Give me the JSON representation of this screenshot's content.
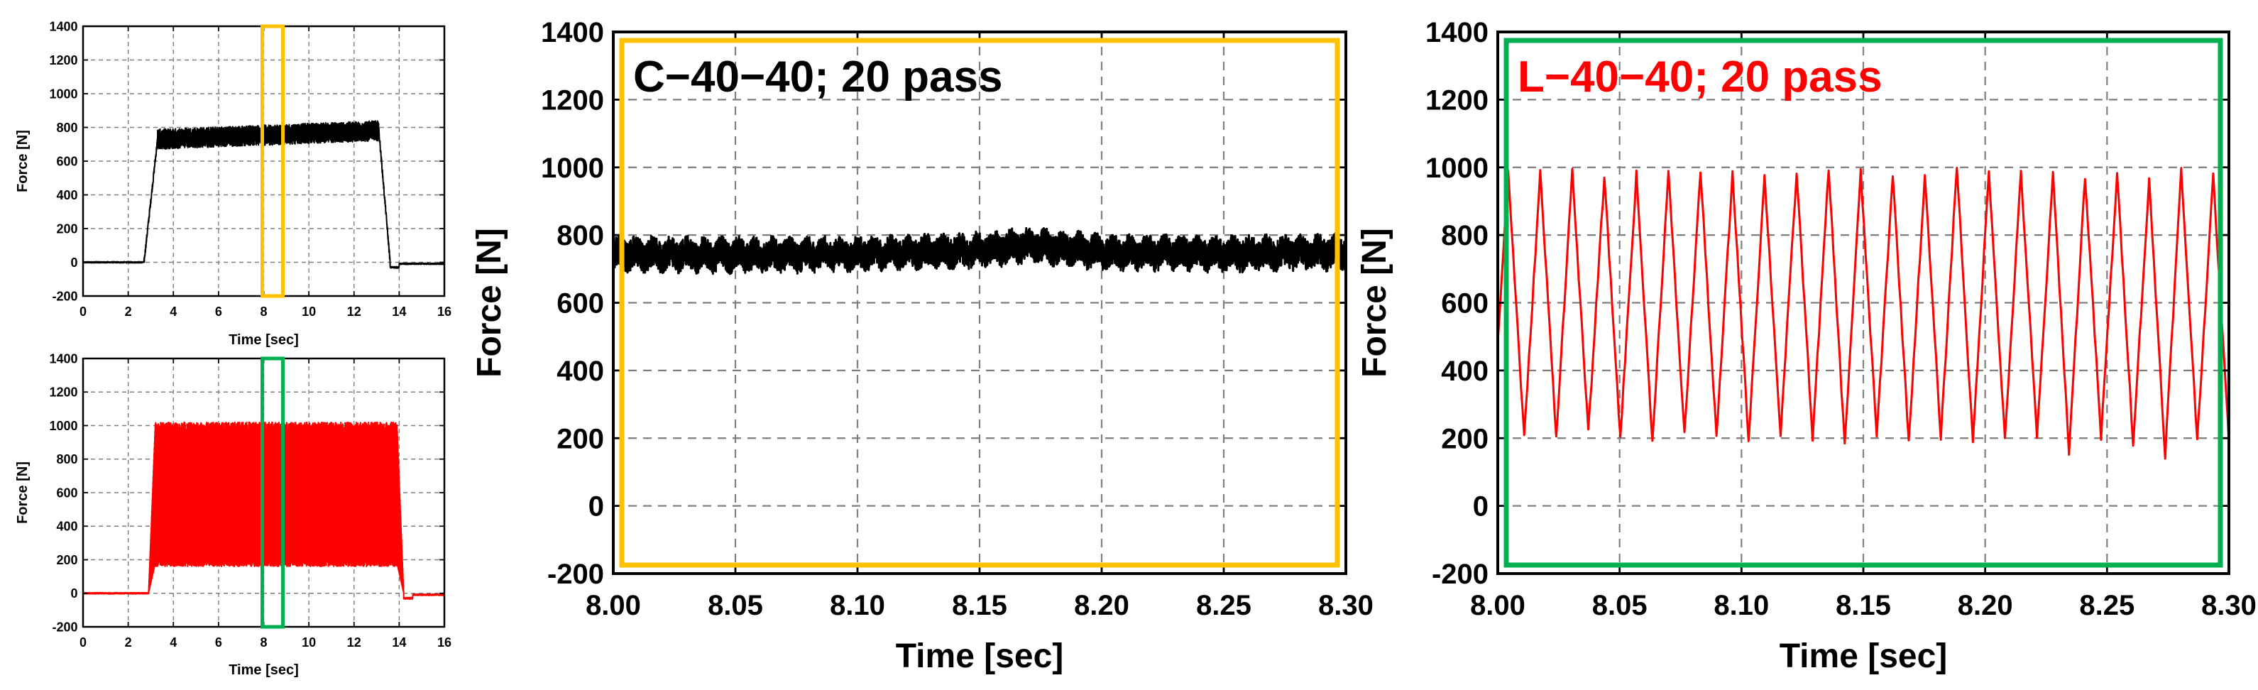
{
  "chart_data": [
    {
      "id": "overview-c",
      "type": "line",
      "xlabel": "Time [sec]",
      "ylabel": "Force [N]",
      "xlim": [
        0,
        16
      ],
      "ylim": [
        -200,
        1400
      ],
      "xticks": [
        0,
        2,
        4,
        6,
        8,
        10,
        12,
        14,
        16
      ],
      "yticks": [
        -200,
        0,
        200,
        400,
        600,
        800,
        1000,
        1200,
        1400
      ],
      "grid": true,
      "line_color": "#000000",
      "signal": {
        "baseline": 0,
        "ramp_start": 2.7,
        "plateau_start": 3.3,
        "plateau_end": 13.1,
        "ramp_end_time": 13.6,
        "after_dip": -30,
        "plateau_mean_start": 730,
        "plateau_mean_end": 780,
        "band_halfwidth": 60
      },
      "highlight": {
        "x_range": [
          8.0,
          8.3
        ],
        "y_range": [
          -200,
          1400
        ],
        "color": "#FFC000"
      }
    },
    {
      "id": "overview-l",
      "type": "line",
      "xlabel": "Time [sec]",
      "ylabel": "Force [N]",
      "xlim": [
        0,
        16
      ],
      "ylim": [
        -200,
        1400
      ],
      "xticks": [
        0,
        2,
        4,
        6,
        8,
        10,
        12,
        14,
        16
      ],
      "yticks": [
        -200,
        0,
        200,
        400,
        600,
        800,
        1000,
        1200,
        1400
      ],
      "grid": true,
      "line_color": "#FF0000",
      "signal": {
        "baseline": 0,
        "ramp_start": 2.9,
        "plateau_start": 3.2,
        "plateau_end": 13.9,
        "ramp_end_time": 14.2,
        "after_dip": -30,
        "band_low": 180,
        "band_high": 1020
      },
      "highlight": {
        "x_range": [
          8.0,
          8.3
        ],
        "y_range": [
          -200,
          1400
        ],
        "color": "#00B050"
      }
    },
    {
      "id": "zoom-c",
      "type": "line",
      "title": "C−40−40; 20 pass",
      "title_color": "#000000",
      "xlabel": "Time [sec]",
      "ylabel": "Force [N]",
      "xlim": [
        8.0,
        8.3
      ],
      "ylim": [
        -200,
        1400
      ],
      "xticks": [
        "8.00",
        "8.05",
        "8.10",
        "8.15",
        "8.20",
        "8.25",
        "8.30"
      ],
      "yticks": [
        -200,
        0,
        200,
        400,
        600,
        800,
        1000,
        1200,
        1400
      ],
      "grid": true,
      "line_color": "#000000",
      "signal": {
        "mean_points": [
          [
            8.0,
            745
          ],
          [
            8.05,
            740
          ],
          [
            8.1,
            745
          ],
          [
            8.15,
            755
          ],
          [
            8.17,
            770
          ],
          [
            8.2,
            750
          ],
          [
            8.25,
            745
          ],
          [
            8.3,
            750
          ]
        ],
        "band_halfwidth": 45
      },
      "frame_color": "#FFC000"
    },
    {
      "id": "zoom-l",
      "type": "line",
      "title": "L−40−40; 20 pass",
      "title_color": "#FF0000",
      "xlabel": "Time [sec]",
      "ylabel": "Force [N]",
      "xlim": [
        8.0,
        8.3
      ],
      "ylim": [
        -200,
        1400
      ],
      "xticks": [
        "8.00",
        "8.05",
        "8.10",
        "8.15",
        "8.20",
        "8.25",
        "8.30"
      ],
      "yticks": [
        -200,
        0,
        200,
        400,
        600,
        800,
        1000,
        1200,
        1400
      ],
      "grid": true,
      "line_color": "#FF0000",
      "signal": {
        "oscillation_period": 0.01315,
        "phase_offset": -0.0023,
        "peaks": [
          990,
          985,
          990,
          975,
          980,
          985,
          990,
          980,
          975,
          985,
          995,
          985,
          980,
          975,
          1005,
          990,
          985,
          980,
          975,
          980,
          960,
          990,
          975,
          975
        ],
        "troughs": [
          210,
          200,
          205,
          215,
          200,
          190,
          210,
          200,
          195,
          210,
          200,
          180,
          205,
          190,
          200,
          185,
          195,
          200,
          160,
          200,
          185,
          150,
          195,
          170
        ]
      },
      "frame_color": "#00B050"
    }
  ]
}
